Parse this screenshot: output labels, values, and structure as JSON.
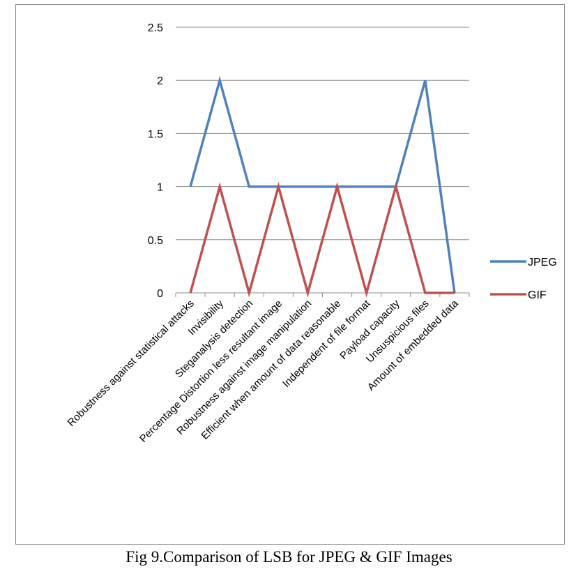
{
  "caption": "Fig 9.Comparison of LSB for JPEG & GIF Images",
  "chart_data": {
    "type": "line",
    "title": "",
    "xlabel": "",
    "ylabel": "",
    "ylim": [
      0,
      2.5
    ],
    "yticks": [
      "0",
      "0.5",
      "1",
      "1.5",
      "2",
      "2.5"
    ],
    "grid": "horizontal",
    "legend_position": "right",
    "categories": [
      "Robustness against statistical attacks",
      "Invisibility",
      "Steganalysis detection",
      "Percentage Distortion less resultant image",
      "Robustness against image manipulation",
      "Efficient when amount of data reasonable",
      "Independent of file format",
      "Payload capacity",
      "Unsuspicious files",
      "Amount of embedded data"
    ],
    "series": [
      {
        "name": "JPEG",
        "color": "#4f81bd",
        "values": [
          1,
          2,
          1,
          1,
          1,
          1,
          1,
          1,
          2,
          0
        ]
      },
      {
        "name": "GIF",
        "color": "#c0504d",
        "values": [
          0,
          1,
          0,
          1,
          0,
          1,
          0,
          1,
          0,
          0
        ]
      }
    ]
  }
}
